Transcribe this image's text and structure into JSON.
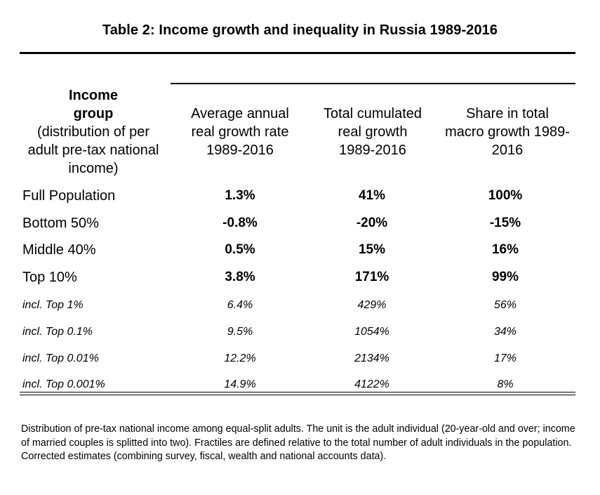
{
  "title": "Table 2: Income growth and inequality in Russia 1989-2016",
  "header": {
    "group_bold_1": "Income",
    "group_bold_2": "group",
    "group_sub_1": "(distribution of per",
    "group_sub_2": "adult pre-tax national",
    "group_sub_3": "income)",
    "col1": [
      "Average annual",
      "real growth rate",
      "1989-2016"
    ],
    "col2": [
      "Total cumulated",
      "real growth",
      "1989-2016"
    ],
    "col3": [
      "Share in total",
      "macro growth 1989-",
      "2016"
    ]
  },
  "rows": [
    {
      "label": "Full Population",
      "c1": "1.3%",
      "c2": "41%",
      "c3": "100%"
    },
    {
      "label": "Bottom 50%",
      "c1": "-0.8%",
      "c2": "-20%",
      "c3": "-15%"
    },
    {
      "label": "Middle 40%",
      "c1": "0.5%",
      "c2": "15%",
      "c3": "16%"
    },
    {
      "label": "Top 10%",
      "c1": "3.8%",
      "c2": "171%",
      "c3": "99%"
    },
    {
      "label": "incl. Top 1%",
      "c1": "6.4%",
      "c2": "429%",
      "c3": "56%"
    },
    {
      "label": "incl. Top 0.1%",
      "c1": "9.5%",
      "c2": "1054%",
      "c3": "34%"
    },
    {
      "label": "incl. Top 0.01%",
      "c1": "12.2%",
      "c2": "2134%",
      "c3": "17%"
    },
    {
      "label": "incl. Top 0.001%",
      "c1": "14.9%",
      "c2": "4122%",
      "c3": "8%"
    }
  ],
  "note": "Distribution of pre-tax national income among equal-split adults. The unit is the adult individual (20-year-old and over; income of married couples is splitted into two). Fractiles are defined relative to the total number of adult individuals in the population. Corrected estimates (combining survey, fiscal, wealth and national accounts data)."
}
